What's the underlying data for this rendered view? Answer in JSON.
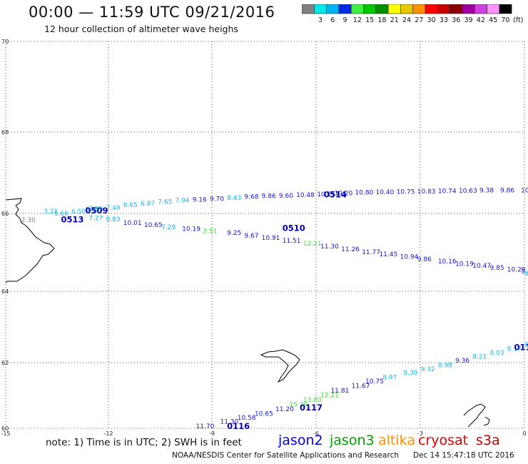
{
  "header": {
    "title": "00:00 — 11:59 UTC 09/21/2016",
    "subtitle": "12 hour collection of altimeter wave heighs"
  },
  "colorbar": {
    "unit": "(ft)",
    "bins": [
      {
        "label": "",
        "color": "#808080"
      },
      {
        "label": "3",
        "color": "#00e8e8"
      },
      {
        "label": "6",
        "color": "#00b4f0"
      },
      {
        "label": "9",
        "color": "#0028e8"
      },
      {
        "label": "12",
        "color": "#40f040"
      },
      {
        "label": "15",
        "color": "#00c800"
      },
      {
        "label": "18",
        "color": "#009000"
      },
      {
        "label": "21",
        "color": "#ffff00"
      },
      {
        "label": "24",
        "color": "#e8c800"
      },
      {
        "label": "27",
        "color": "#ff9000"
      },
      {
        "label": "30",
        "color": "#ff0000"
      },
      {
        "label": "33",
        "color": "#c80000"
      },
      {
        "label": "36",
        "color": "#8c0000"
      },
      {
        "label": "39",
        "color": "#a000a0"
      },
      {
        "label": "42",
        "color": "#d040e0"
      },
      {
        "label": "45",
        "color": "#ff90ff"
      },
      {
        "label": "70",
        "color": "#000000"
      }
    ]
  },
  "map": {
    "lon_range": [
      -15,
      0
    ],
    "lat_range": [
      60,
      70
    ],
    "x_ticks": [
      "-15",
      "-12",
      "-9",
      "-6",
      "-3",
      "0"
    ],
    "y_ticks": [
      "70",
      "68",
      "66",
      "64",
      "62",
      "60"
    ],
    "color_scheme": {
      "gray": "#808080",
      "cyan": "#12b8ea",
      "lightcyan": "#00d8e8",
      "blue": "#1414d2",
      "lime": "#40e040",
      "dkblue": "#0000c0"
    },
    "tracks": [
      {
        "name": "track-0509-0513",
        "labels": [
          [
            "2.30",
            "gray",
            -14.55,
            65.33
          ],
          [
            "3.21",
            "cyan",
            -13.9,
            65.55
          ],
          [
            "5.66",
            "cyan",
            -13.6,
            65.5
          ],
          [
            "6.50",
            "cyan",
            -13.1,
            65.55
          ],
          [
            "7.99",
            "cyan",
            -12.6,
            65.62
          ],
          [
            "7.40",
            "cyan",
            -12.1,
            65.65
          ],
          [
            "7.27",
            "cyan",
            -12.6,
            65.38
          ],
          [
            "8.83",
            "cyan",
            -12.1,
            65.35
          ],
          [
            "10.01",
            "blue",
            -11.6,
            65.26
          ],
          [
            "10.65",
            "blue",
            -11.0,
            65.2
          ],
          [
            "7.29",
            "cyan",
            -10.5,
            65.15
          ],
          [
            "10.19",
            "blue",
            -9.9,
            65.1
          ],
          [
            "2.51",
            "lime",
            -9.3,
            65.05
          ],
          [
            "9.25",
            "blue",
            -8.6,
            65.0
          ],
          [
            "9.67",
            "blue",
            -8.1,
            64.93
          ],
          [
            "10.91",
            "blue",
            -7.6,
            64.87
          ],
          [
            "11.51",
            "blue",
            -7.0,
            64.8
          ],
          [
            "12.21",
            "lime",
            -6.4,
            64.72
          ],
          [
            "11.30",
            "blue",
            -5.9,
            64.65
          ],
          [
            "11.26",
            "blue",
            -5.3,
            64.58
          ],
          [
            "11.77",
            "blue",
            -4.7,
            64.5
          ],
          [
            "11.45",
            "blue",
            -4.2,
            64.45
          ],
          [
            "10.94",
            "blue",
            -3.6,
            64.38
          ],
          [
            "9.86",
            "blue",
            -3.1,
            64.32
          ],
          [
            "10.16",
            "blue",
            -2.5,
            64.26
          ],
          [
            "10.19",
            "blue",
            -2.0,
            64.2
          ],
          [
            "10.47",
            "blue",
            -1.5,
            64.15
          ],
          [
            "9.85",
            "blue",
            -1.0,
            64.1
          ],
          [
            "10.29",
            "blue",
            -0.5,
            64.05
          ],
          [
            "9.14",
            "blue",
            -0.1,
            64.0
          ],
          [
            "8.30",
            "cyan",
            0.0,
            63.95
          ],
          [
            "7.52",
            "cyan",
            0.4,
            63.9
          ],
          [
            "7",
            "cyan",
            0.55,
            63.85
          ]
        ]
      },
      {
        "name": "track-0509-0514",
        "labels": [
          [
            "6.65",
            "cyan",
            -12.7,
            65.6
          ],
          [
            "8.65",
            "cyan",
            -11.6,
            65.72
          ],
          [
            "6.87",
            "cyan",
            -11.1,
            65.76
          ],
          [
            "7.65",
            "cyan",
            -10.6,
            65.8
          ],
          [
            "7.94",
            "cyan",
            -10.1,
            65.84
          ],
          [
            "9.16",
            "blue",
            -9.6,
            65.86
          ],
          [
            "9.70",
            "blue",
            -9.1,
            65.88
          ],
          [
            "8.43",
            "cyan",
            -8.6,
            65.9
          ],
          [
            "9.68",
            "blue",
            -8.1,
            65.93
          ],
          [
            "9.86",
            "blue",
            -7.6,
            65.95
          ],
          [
            "9.60",
            "blue",
            -7.1,
            65.96
          ],
          [
            "10.48",
            "blue",
            -6.6,
            65.98
          ],
          [
            "10.15",
            "blue",
            -6.0,
            66.0
          ],
          [
            "10.20",
            "blue",
            -5.5,
            66.02
          ],
          [
            "10.80",
            "blue",
            -4.9,
            66.04
          ],
          [
            "10.40",
            "blue",
            -4.3,
            66.05
          ],
          [
            "10.75",
            "blue",
            -3.7,
            66.06
          ],
          [
            "10.83",
            "blue",
            -3.1,
            66.07
          ],
          [
            "10.74",
            "blue",
            -2.5,
            66.08
          ],
          [
            "10.63",
            "blue",
            -1.9,
            66.09
          ],
          [
            "9.38",
            "blue",
            -1.3,
            66.1
          ],
          [
            "9.86",
            "blue",
            -0.7,
            66.1
          ],
          [
            "10",
            "blue",
            -0.1,
            66.1
          ]
        ]
      },
      {
        "name": "track-0116-0118",
        "labels": [
          [
            "11.70",
            "blue",
            -9.5,
            60.0
          ],
          [
            "11.30",
            "blue",
            -8.8,
            60.12
          ],
          [
            "10.58",
            "blue",
            -8.3,
            60.22
          ],
          [
            "10.65",
            "blue",
            -7.8,
            60.32
          ],
          [
            "11.20",
            "blue",
            -7.2,
            60.44
          ],
          [
            "15.30",
            "lime",
            -6.8,
            60.56
          ],
          [
            "13.80",
            "lime",
            -6.4,
            60.68
          ],
          [
            "12.21",
            "lime",
            -5.9,
            60.8
          ],
          [
            "11.81",
            "blue",
            -5.6,
            60.92
          ],
          [
            "11.67",
            "blue",
            -5.0,
            61.04
          ],
          [
            "10.75",
            "blue",
            -4.6,
            61.16
          ],
          [
            "8.97",
            "cyan",
            -4.1,
            61.26
          ],
          [
            "9.39",
            "cyan",
            -3.5,
            61.38
          ],
          [
            "9.32",
            "cyan",
            -3.0,
            61.48
          ],
          [
            "8.98",
            "cyan",
            -2.5,
            61.58
          ],
          [
            "9.36",
            "blue",
            -2.0,
            61.7
          ],
          [
            "8.21",
            "cyan",
            -1.5,
            61.8
          ],
          [
            "8.03",
            "cyan",
            -1.0,
            61.9
          ],
          [
            "8.17",
            "cyan",
            -0.5,
            62.0
          ],
          [
            "8.08",
            "cyan",
            0.0,
            62.1
          ],
          [
            "8.54",
            "cyan",
            0.4,
            62.22
          ],
          [
            "8.20",
            "cyan",
            0.75,
            62.32
          ]
        ]
      }
    ],
    "passes": [
      {
        "id": "0509",
        "lon": -12.7,
        "lat": 65.55,
        "color": "dkblue"
      },
      {
        "id": "0513",
        "lon": -13.4,
        "lat": 65.32,
        "color": "dkblue"
      },
      {
        "id": "0514",
        "lon": -5.8,
        "lat": 65.97,
        "color": "dkblue"
      },
      {
        "id": "0510",
        "lon": -7.0,
        "lat": 65.1,
        "color": "dkblue"
      },
      {
        "id": "0511",
        "lon": 0.6,
        "lat": 64.0,
        "color": "dkblue"
      },
      {
        "id": "0118",
        "lon": -0.3,
        "lat": 62.02,
        "color": "dkblue"
      },
      {
        "id": "0117",
        "lon": -6.5,
        "lat": 60.46,
        "color": "dkblue"
      },
      {
        "id": "0116",
        "lon": -8.6,
        "lat": 59.98,
        "color": "dkblue"
      }
    ]
  },
  "note": "note:  1) Time is in UTC;  2) SWH is in feet",
  "satellites": [
    {
      "name": "jason2",
      "color": "#0000e8"
    },
    {
      "name": "jason3",
      "color": "#00a000"
    },
    {
      "name": "altika",
      "color": "#ff9000"
    },
    {
      "name": "cryosat",
      "color": "#e00000"
    },
    {
      "name": "s3a",
      "color": "#c00000"
    }
  ],
  "footer": {
    "agency": "NOAA/NESDIS Center for Satellite Applications and Research",
    "timestamp": "Dec 14 15:47:18 UTC 2016"
  }
}
